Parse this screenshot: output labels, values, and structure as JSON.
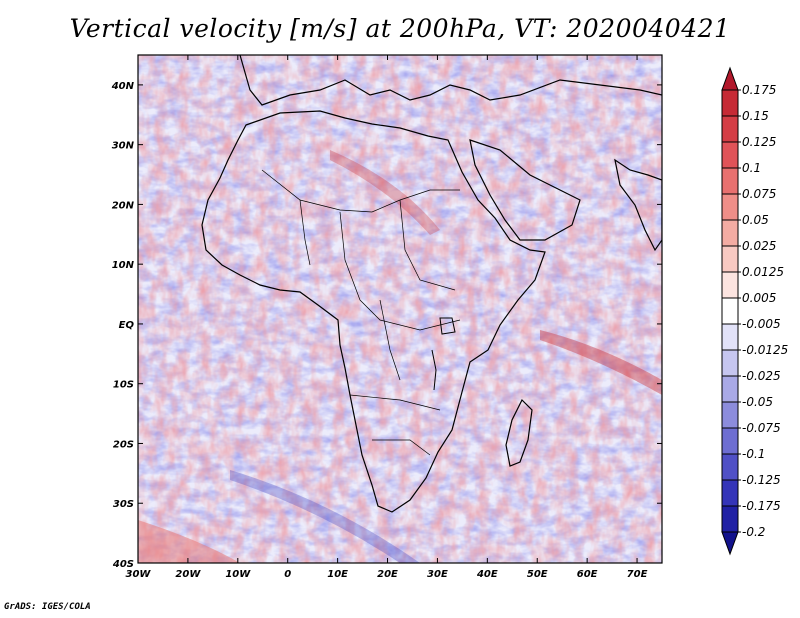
{
  "title": "Vertical velocity [m/s] at 200hPa, VT: 2020040421",
  "credit": "GrADS: IGES/COLA",
  "map": {
    "lon_range": [
      -30,
      75
    ],
    "lat_range": [
      -40,
      45
    ],
    "lat_ticks": [
      {
        "lat": 40,
        "label": "40N"
      },
      {
        "lat": 30,
        "label": "30N"
      },
      {
        "lat": 20,
        "label": "20N"
      },
      {
        "lat": 10,
        "label": "10N"
      },
      {
        "lat": 0,
        "label": "EQ"
      },
      {
        "lat": -10,
        "label": "10S"
      },
      {
        "lat": -20,
        "label": "20S"
      },
      {
        "lat": -30,
        "label": "30S"
      },
      {
        "lat": -40,
        "label": "40S"
      }
    ],
    "lon_ticks": [
      {
        "lon": -30,
        "label": "30W"
      },
      {
        "lon": -20,
        "label": "20W"
      },
      {
        "lon": -10,
        "label": "10W"
      },
      {
        "lon": 0,
        "label": "0"
      },
      {
        "lon": 10,
        "label": "10E"
      },
      {
        "lon": 20,
        "label": "20E"
      },
      {
        "lon": 30,
        "label": "30E"
      },
      {
        "lon": 40,
        "label": "40E"
      },
      {
        "lon": 50,
        "label": "50E"
      },
      {
        "lon": 60,
        "label": "60E"
      },
      {
        "lon": 70,
        "label": "70E"
      }
    ]
  },
  "colorbar": {
    "labels": [
      "0.175",
      "0.15",
      "0.125",
      "0.1",
      "0.075",
      "0.05",
      "0.025",
      "0.0125",
      "0.005",
      "-0.005",
      "-0.0125",
      "-0.025",
      "-0.05",
      "-0.075",
      "-0.1",
      "-0.125",
      "-0.175",
      "-0.2"
    ],
    "colors": [
      "#b2182b",
      "#c62a35",
      "#d43d45",
      "#e05358",
      "#e8706f",
      "#ef8e88",
      "#f4aca3",
      "#f8c9c2",
      "#fce4e0",
      "#ffffff",
      "#e2e2f8",
      "#c6c6f0",
      "#a9a9e6",
      "#8c8cdc",
      "#6e6ed2",
      "#5050c6",
      "#3434b8",
      "#2020a4",
      "#12128c"
    ]
  }
}
